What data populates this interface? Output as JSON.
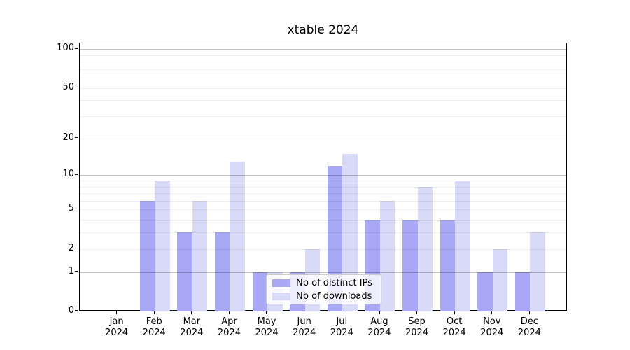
{
  "figure": {
    "background": "#ffffff"
  },
  "chart_data": {
    "type": "bar",
    "title": "xtable 2024",
    "categories": [
      "Jan",
      "Feb",
      "Mar",
      "Apr",
      "May",
      "Jun",
      "Jul",
      "Aug",
      "Sep",
      "Oct",
      "Nov",
      "Dec"
    ],
    "x_sublabel": "2024",
    "series": [
      {
        "name": "Nb of distinct IPs",
        "color": "#a8a8f4",
        "values": [
          0,
          6,
          3,
          3,
          1,
          1,
          12,
          4,
          4,
          4,
          1,
          1
        ]
      },
      {
        "name": "Nb of downloads",
        "color": "#d9d9f8",
        "values": [
          0,
          9,
          6,
          13,
          1,
          2,
          15,
          6,
          8,
          9,
          2,
          3
        ]
      }
    ],
    "xlabel": "",
    "ylabel": "",
    "yscale": "log(1+x)",
    "ylim": [
      0,
      111
    ],
    "ytick_values": [
      0,
      1,
      2,
      5,
      10,
      20,
      50,
      100
    ],
    "ytick_labels": [
      "0",
      "1",
      "2",
      "5",
      "10",
      "20",
      "50",
      "100"
    ],
    "major_grid_values": [
      1,
      10,
      100
    ],
    "minor_grid_values": [
      2,
      3,
      4,
      5,
      6,
      7,
      8,
      9,
      20,
      30,
      40,
      50,
      60,
      70,
      80,
      90
    ],
    "grid": true,
    "legend_position": "lower-center"
  }
}
